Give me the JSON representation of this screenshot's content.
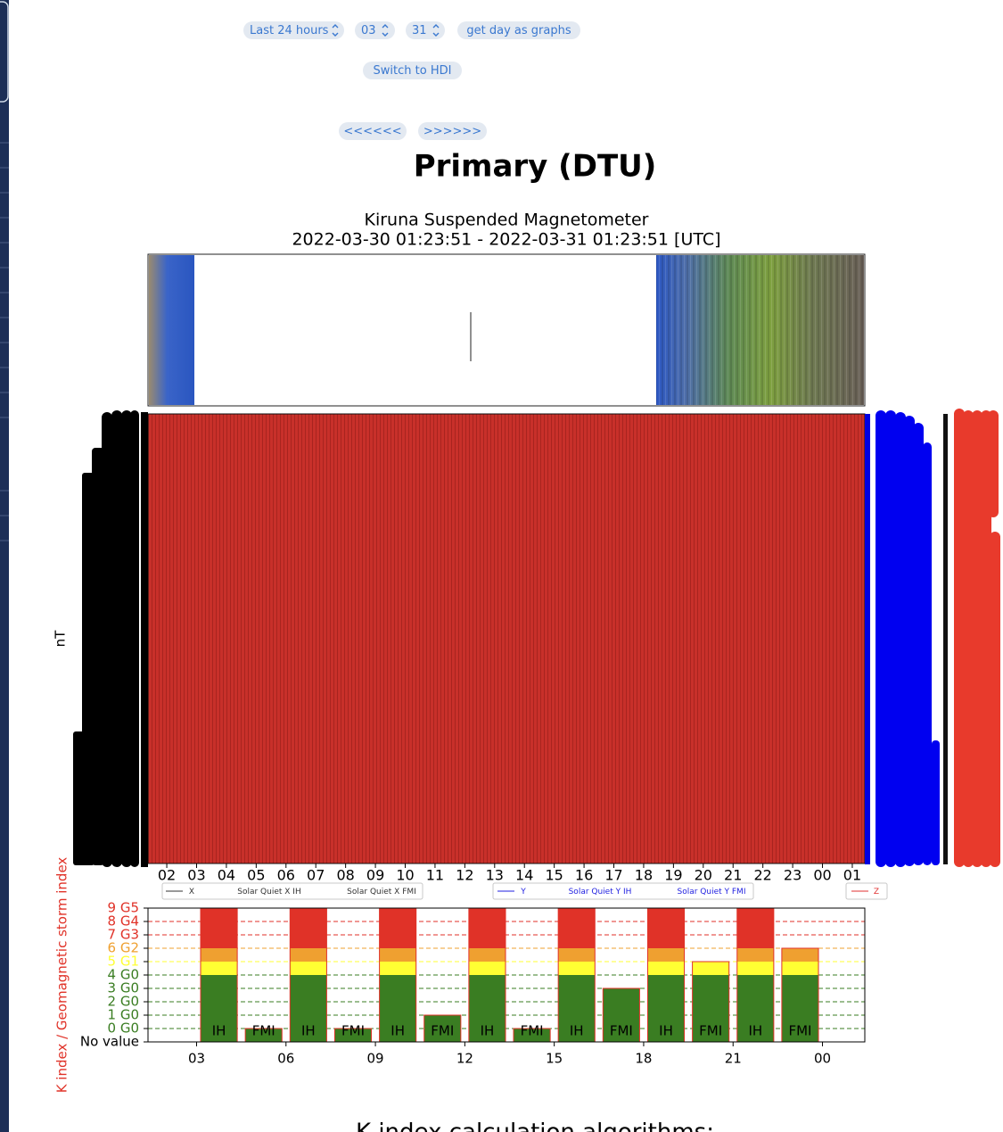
{
  "controls": {
    "range": "Last 24 hours",
    "month": "03",
    "day": "31",
    "get_day": "get day as graphs",
    "switch": "Switch to HDI",
    "prev": "<<<<<<",
    "next": ">>>>>>"
  },
  "heading": "Primary (DTU)",
  "chart_data": [
    {
      "type": "line",
      "title": "Kiruna Suspended Magnetometer",
      "subtitle": "2022-03-30 01:23:51 - 2022-03-31 01:23:51 [UTC]",
      "ylabel": "nT",
      "xlim": [
        1.37,
        25.42
      ],
      "xticks": [
        {
          "value": 2,
          "label": "02"
        },
        {
          "value": 3,
          "label": "03"
        },
        {
          "value": 4,
          "label": "04"
        },
        {
          "value": 5,
          "label": "05"
        },
        {
          "value": 6,
          "label": "06"
        },
        {
          "value": 7,
          "label": "07"
        },
        {
          "value": 8,
          "label": "08"
        },
        {
          "value": 9,
          "label": "09"
        },
        10,
        11,
        12,
        13,
        14,
        15,
        16,
        17,
        18,
        19,
        20,
        21,
        22,
        23,
        {
          "value": 24,
          "label": "00"
        },
        {
          "value": 25,
          "label": "01"
        }
      ],
      "plot_color": "#c8302a",
      "series": [
        {
          "name": "X",
          "color": "#333333"
        },
        {
          "name": "Solar Quiet X IH",
          "color": "#333333"
        },
        {
          "name": "Solar Quiet X FMI",
          "color": "#333333"
        },
        {
          "name": "Y",
          "color": "#1f1fe0"
        },
        {
          "name": "Solar Quiet Y IH",
          "color": "#1f1fe0"
        },
        {
          "name": "Solar Quiet Y FMI",
          "color": "#1f1fe0"
        },
        {
          "name": "Z",
          "color": "#e03030"
        }
      ]
    },
    {
      "type": "bar",
      "ylabel": "K index / Geomagnetic storm index",
      "x": [
        3.75,
        5.25,
        6.75,
        8.25,
        9.75,
        11.25,
        12.75,
        14.25,
        15.75,
        17.25,
        18.75,
        20.25,
        21.75,
        23.25
      ],
      "values": [
        9,
        0,
        9,
        0,
        9,
        1,
        9,
        0,
        9,
        3,
        9,
        5,
        9,
        6
      ],
      "labels": [
        "IH",
        "FMI",
        "IH",
        "FMI",
        "IH",
        "FMI",
        "IH",
        "FMI",
        "IH",
        "FMI",
        "IH",
        "FMI",
        "IH",
        "FMI"
      ],
      "xlim": [
        1.37,
        25.42
      ],
      "xticks": [
        {
          "value": 3,
          "label": "03"
        },
        {
          "value": 6,
          "label": "06"
        },
        {
          "value": 9,
          "label": "09"
        },
        12,
        15,
        18,
        21,
        {
          "value": 24,
          "label": "00"
        }
      ],
      "ylim": [
        -1,
        9
      ],
      "yticks": [
        {
          "value": 9,
          "label": "9 G5",
          "color": "#e03228"
        },
        {
          "value": 8,
          "label": "8 G4",
          "color": "#e03228"
        },
        {
          "value": 7,
          "label": "7 G3",
          "color": "#e03228"
        },
        {
          "value": 6,
          "label": "6 G2",
          "color": "#efa030"
        },
        {
          "value": 5,
          "label": "5 G1",
          "color": "#ffff33"
        },
        {
          "value": 4,
          "label": "4 G0",
          "color": "#3a7d22"
        },
        {
          "value": 3,
          "label": "3 G0",
          "color": "#3a7d22"
        },
        {
          "value": 2,
          "label": "2 G0",
          "color": "#3a7d22"
        },
        {
          "value": 1,
          "label": "1 G0",
          "color": "#3a7d22"
        },
        {
          "value": 0,
          "label": "0 G0",
          "color": "#3a7d22"
        },
        {
          "value": -1,
          "label": "No value",
          "color": "#000000"
        }
      ],
      "grid": true
    }
  ],
  "footer": "K index calculation algorithms:"
}
